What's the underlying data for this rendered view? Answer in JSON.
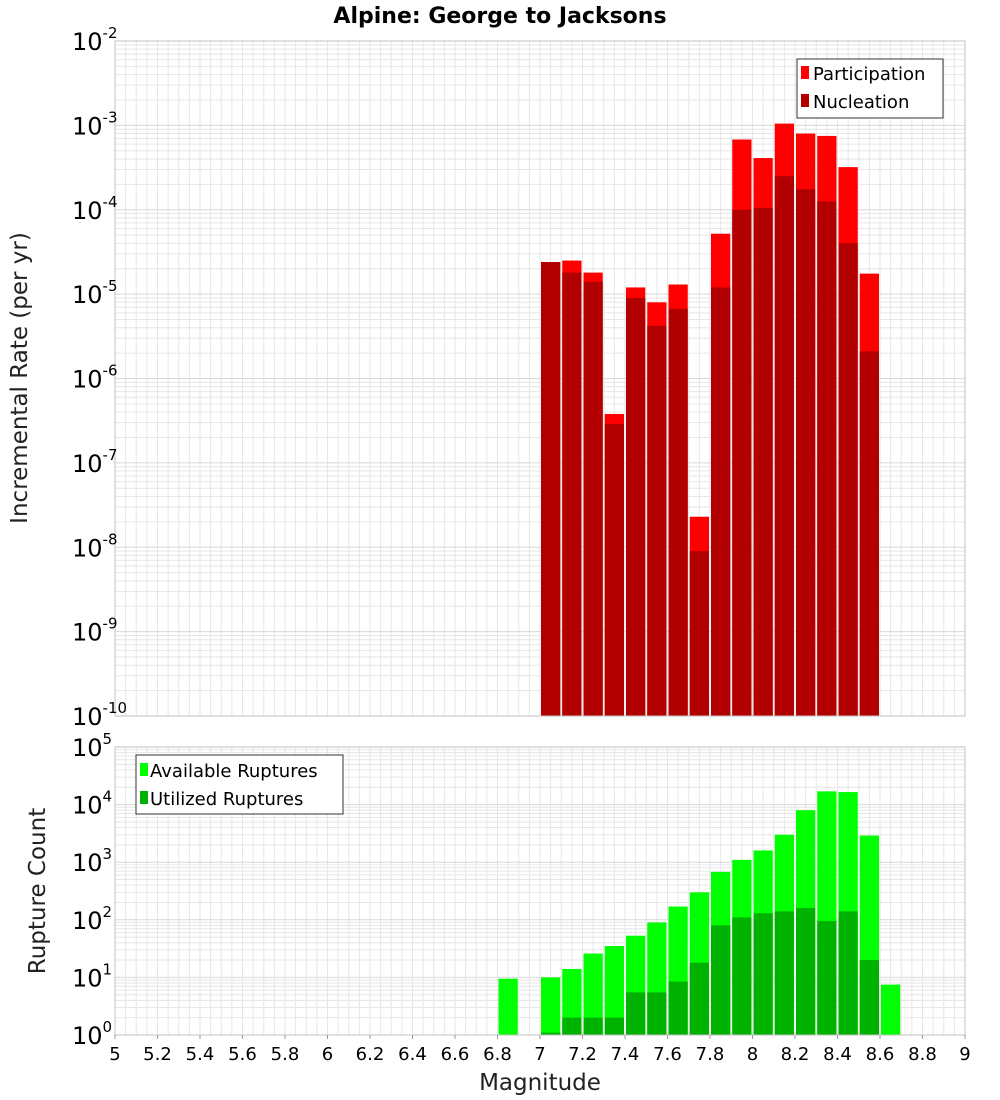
{
  "chart_data": [
    {
      "type": "bar",
      "title": "Alpine: George to Jacksons",
      "xlabel": "",
      "ylabel": "Incremental Rate (per yr)",
      "y_scale": "log",
      "ylim_exponents": [
        -10,
        -2
      ],
      "xlim": [
        5,
        9
      ],
      "grid": true,
      "legend_position": "top-right",
      "bar_width": 0.1,
      "series": [
        {
          "name": "Participation",
          "color": "#ff0000",
          "x": [
            7.0,
            7.1,
            7.2,
            7.3,
            7.4,
            7.5,
            7.6,
            7.7,
            7.8,
            7.9,
            8.0,
            8.1,
            8.2,
            8.3,
            8.4,
            8.5
          ],
          "values": [
            2.4e-05,
            2.5e-05,
            1.8e-05,
            3.8e-07,
            1.2e-05,
            8e-06,
            1.3e-05,
            2.3e-08,
            5.2e-05,
            0.00068,
            0.00041,
            0.00105,
            0.0008,
            0.00075,
            0.00032,
            1.75e-05
          ]
        },
        {
          "name": "Nucleation",
          "color": "#b20000",
          "x": [
            7.0,
            7.1,
            7.2,
            7.3,
            7.4,
            7.5,
            7.6,
            7.7,
            7.8,
            7.9,
            8.0,
            8.1,
            8.2,
            8.3,
            8.4,
            8.5
          ],
          "values": [
            2.4e-05,
            1.8e-05,
            1.4e-05,
            2.9e-07,
            9e-06,
            4.2e-06,
            6.7e-06,
            9e-09,
            1.2e-05,
            0.0001,
            0.000105,
            0.00025,
            0.000175,
            0.000125,
            4e-05,
            2.1e-06
          ]
        }
      ]
    },
    {
      "type": "bar",
      "title": "",
      "xlabel": "Magnitude",
      "ylabel": "Rupture Count",
      "y_scale": "log",
      "ylim_exponents": [
        0,
        5
      ],
      "xlim": [
        5,
        9
      ],
      "grid": true,
      "legend_position": "top-left",
      "bar_width": 0.1,
      "series": [
        {
          "name": "Available Ruptures",
          "color": "#00ff00",
          "x": [
            6.8,
            7.0,
            7.1,
            7.2,
            7.3,
            7.4,
            7.5,
            7.6,
            7.7,
            7.8,
            7.9,
            8.0,
            8.1,
            8.2,
            8.3,
            8.4,
            8.5,
            8.6
          ],
          "values": [
            9.5,
            10,
            14,
            26,
            35,
            53,
            90,
            170,
            300,
            680,
            1100,
            1600,
            3000,
            8000,
            17000,
            16500,
            2900,
            7.5
          ]
        },
        {
          "name": "Utilized Ruptures",
          "color": "#00b200",
          "x": [
            7.0,
            7.1,
            7.2,
            7.3,
            7.4,
            7.5,
            7.6,
            7.7,
            7.8,
            7.9,
            8.0,
            8.1,
            8.2,
            8.3,
            8.4,
            8.5
          ],
          "values": [
            1.1,
            2,
            2,
            2,
            5.5,
            5.5,
            8.5,
            18,
            80,
            110,
            130,
            140,
            160,
            95,
            140,
            20
          ]
        }
      ]
    }
  ],
  "x_tick_labels": [
    "5",
    "5.2",
    "5.4",
    "5.6",
    "5.8",
    "6",
    "6.2",
    "6.4",
    "6.6",
    "6.8",
    "7",
    "7.2",
    "7.4",
    "7.6",
    "7.8",
    "8",
    "8.2",
    "8.4",
    "8.6",
    "8.8",
    "9"
  ],
  "top_y_ticks": [
    {
      "base": "10",
      "exp": "-2"
    },
    {
      "base": "10",
      "exp": "-3"
    },
    {
      "base": "10",
      "exp": "-4"
    },
    {
      "base": "10",
      "exp": "-5"
    },
    {
      "base": "10",
      "exp": "-6"
    },
    {
      "base": "10",
      "exp": "-7"
    },
    {
      "base": "10",
      "exp": "-8"
    },
    {
      "base": "10",
      "exp": "-9"
    },
    {
      "base": "10",
      "exp": "-10"
    }
  ],
  "bottom_y_ticks": [
    {
      "base": "10",
      "exp": "5"
    },
    {
      "base": "10",
      "exp": "4"
    },
    {
      "base": "10",
      "exp": "3"
    },
    {
      "base": "10",
      "exp": "2"
    },
    {
      "base": "10",
      "exp": "1"
    },
    {
      "base": "10",
      "exp": "0"
    }
  ],
  "colors": {
    "participation": "#ff0000",
    "nucleation": "#b20000",
    "available": "#00ff00",
    "utilized": "#00b200",
    "grid": "#e6e6e6",
    "frame": "#c0c0c0"
  }
}
